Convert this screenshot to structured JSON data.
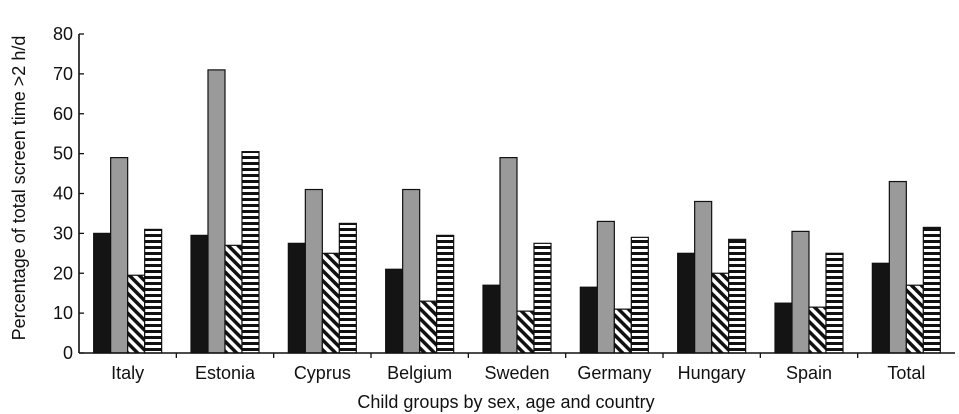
{
  "chart_data": {
    "type": "bar",
    "title": "",
    "xlabel": "Child groups by sex, age and country",
    "ylabel": "Percentage of total screen time >2 h/d",
    "ylim": [
      0,
      80
    ],
    "yticks": [
      0,
      10,
      20,
      30,
      40,
      50,
      60,
      70,
      80
    ],
    "grid": false,
    "legend": "none",
    "categories": [
      "Italy",
      "Estonia",
      "Cyprus",
      "Belgium",
      "Sweden",
      "Germany",
      "Hungary",
      "Spain",
      "Total"
    ],
    "series": [
      {
        "fill": "solid",
        "color": "#141414",
        "values": [
          30,
          29.5,
          27.5,
          21,
          17,
          16.5,
          25,
          12.5,
          22.5
        ]
      },
      {
        "fill": "solid",
        "color": "#9a9a9a",
        "values": [
          49,
          71,
          41,
          41,
          49,
          33,
          38,
          30.5,
          43
        ]
      },
      {
        "fill": "diagonal-stripes",
        "color": "#111111",
        "values": [
          19.5,
          27,
          25,
          13,
          10.5,
          11,
          20,
          11.5,
          17
        ]
      },
      {
        "fill": "horizontal-stripes",
        "color": "#111111",
        "values": [
          31,
          50.5,
          32.5,
          29.5,
          27.5,
          29,
          28.5,
          25,
          31.5
        ]
      }
    ]
  }
}
